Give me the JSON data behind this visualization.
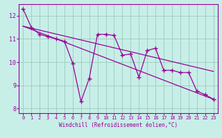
{
  "xlabel": "Windchill (Refroidissement éolien,°C)",
  "bg_color": "#c8eee8",
  "line_color": "#990099",
  "grid_color": "#99ccbb",
  "xlim": [
    -0.5,
    23.5
  ],
  "ylim": [
    7.8,
    12.5
  ],
  "xticks": [
    0,
    1,
    2,
    3,
    4,
    5,
    6,
    7,
    8,
    9,
    10,
    11,
    12,
    13,
    14,
    15,
    16,
    17,
    18,
    19,
    20,
    21,
    22,
    23
  ],
  "yticks": [
    8,
    9,
    10,
    11,
    12
  ],
  "series1_x": [
    0,
    1,
    2,
    3,
    4,
    5,
    6,
    7,
    8,
    9,
    10,
    11,
    12,
    13,
    14,
    15,
    16,
    17,
    18,
    19,
    20,
    21,
    22,
    23
  ],
  "series1_y": [
    12.3,
    11.5,
    11.2,
    11.1,
    11.0,
    10.9,
    9.95,
    8.3,
    9.3,
    11.2,
    11.2,
    11.15,
    10.3,
    10.35,
    9.35,
    10.5,
    10.6,
    9.65,
    9.65,
    9.55,
    9.55,
    8.75,
    8.6,
    8.4
  ],
  "trend1_x": [
    0,
    23
  ],
  "trend1_y": [
    11.55,
    8.4
  ],
  "trend2_x": [
    0,
    23
  ],
  "trend2_y": [
    11.55,
    9.6
  ]
}
